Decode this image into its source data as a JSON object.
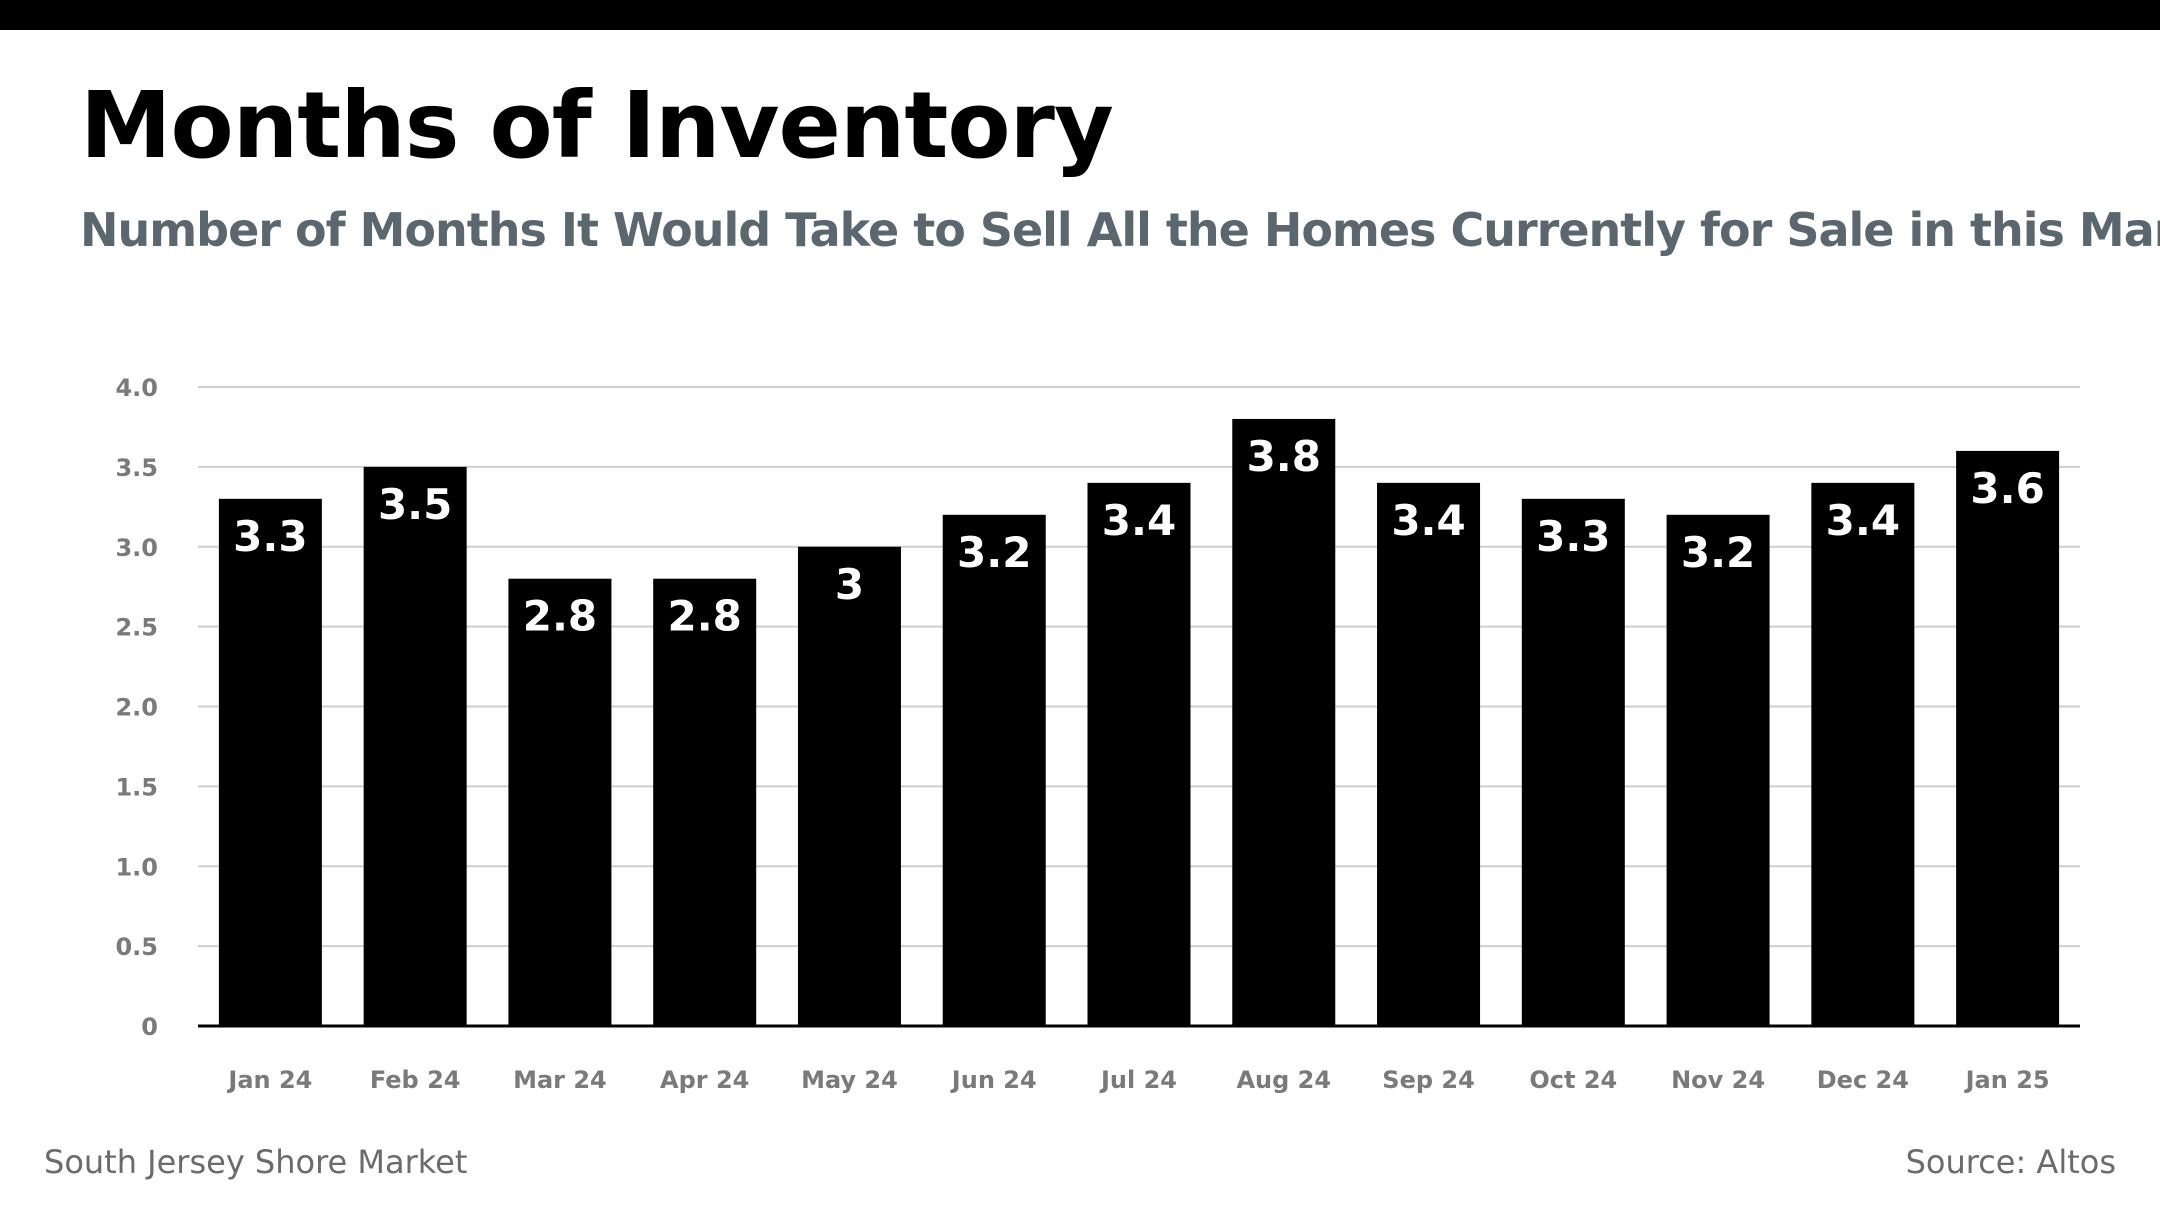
{
  "header": {
    "title": "Months of Inventory",
    "subtitle": "Number of Months It Would Take to Sell All the Homes Currently for Sale in this Market"
  },
  "footer": {
    "market": "South Jersey Shore Market",
    "source": "Source: Altos"
  },
  "colors": {
    "bar": "#000000",
    "bar_label": "#ffffff",
    "grid": "#cfcfcf",
    "axis": "#000000",
    "tick_label": "#7a7a7a",
    "subtitle": "#5b676e"
  },
  "chart_data": {
    "type": "bar",
    "title": "Months of Inventory",
    "subtitle": "Number of Months It Would Take to Sell All the Homes Currently for Sale in this Market",
    "xlabel": "",
    "ylabel": "",
    "ylim": [
      0,
      4
    ],
    "yticks": [
      0,
      0.5,
      1,
      1.5,
      2,
      2.5,
      3,
      3.5,
      4
    ],
    "ytick_labels": [
      "0",
      "0.5",
      "1.0",
      "1.5",
      "2.0",
      "2.5",
      "3.0",
      "3.5",
      "4.0"
    ],
    "grid": true,
    "categories": [
      "Jan 24",
      "Feb 24",
      "Mar 24",
      "Apr 24",
      "May 24",
      "Jun 24",
      "Jul 24",
      "Aug 24",
      "Sep 24",
      "Oct 24",
      "Nov 24",
      "Dec 24",
      "Jan 25"
    ],
    "values": [
      3.3,
      3.5,
      2.8,
      2.8,
      3,
      3.2,
      3.4,
      3.8,
      3.4,
      3.3,
      3.2,
      3.4,
      3.6
    ],
    "data_labels": [
      "3.3",
      "3.5",
      "2.8",
      "2.8",
      "3",
      "3.2",
      "3.4",
      "3.8",
      "3.4",
      "3.3",
      "3.2",
      "3.4",
      "3.6"
    ]
  }
}
